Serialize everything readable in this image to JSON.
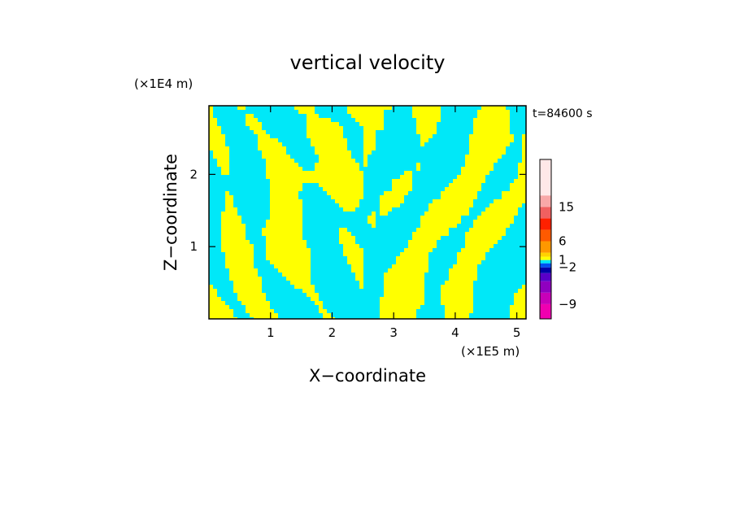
{
  "chart_data": {
    "type": "heatmap",
    "title": "vertical velocity",
    "xlabel": "X−coordinate",
    "ylabel": "Z−coordinate",
    "x_scale_label": "(×1E5 m)",
    "y_scale_label": "(×1E4 m)",
    "time_label": "t=84600 s",
    "xlim": [
      0,
      5.15
    ],
    "ylim": [
      0,
      2.95
    ],
    "x_ticks": [
      1,
      2,
      3,
      4,
      5
    ],
    "x_tick_labels": [
      "1",
      "2",
      "3",
      "4",
      "5"
    ],
    "y_ticks": [
      1,
      2
    ],
    "y_tick_labels": [
      "1",
      "2"
    ],
    "field": {
      "description_colors": {
        "negative": "#00e8f8",
        "positive": "#ffff00"
      },
      "dominant_levels": [
        -2,
        1
      ]
    },
    "colorbar": {
      "levels": [
        -12,
        -9,
        -7,
        -5,
        -3,
        -2,
        -1,
        1,
        2,
        4,
        6,
        9,
        12,
        15,
        18,
        21
      ],
      "colors": [
        "#f000b0",
        "#c800b8",
        "#9000c0",
        "#5800c8",
        "#0000a8",
        "#0050f0",
        "#00e8f8",
        "#ffff00",
        "#ffd200",
        "#ff9800",
        "#ff5a00",
        "#ff2000",
        "#f06060",
        "#f8a8a8",
        "#ffe8e8"
      ],
      "tick_values": [
        15,
        6,
        1,
        -2,
        -9
      ],
      "tick_labels": [
        "15",
        "6",
        "1",
        "−2",
        "−9"
      ]
    }
  }
}
